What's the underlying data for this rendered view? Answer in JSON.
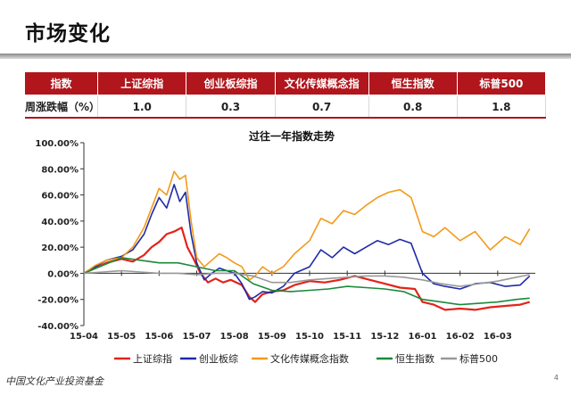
{
  "title": "市场变化",
  "table": {
    "headers": [
      "指数",
      "上证综指",
      "创业板综指",
      "文化传媒概念指",
      "恒生指数",
      "标普500"
    ],
    "row_label": "周涨跌幅（%）",
    "values": [
      "1.0",
      "0.3",
      "0.7",
      "0.8",
      "1.8"
    ]
  },
  "footer": {
    "logo_text": "中国文化产业投资基金",
    "page_number": "4"
  },
  "chart_data": {
    "type": "line",
    "title": "过往一年指数走势",
    "xlabel": "",
    "ylabel": "",
    "ylim": [
      -40,
      100
    ],
    "yticks": [
      "100.00%",
      "80.00%",
      "60.00%",
      "40.00%",
      "20.00%",
      "0.00%",
      "-20.00%",
      "-40.00%"
    ],
    "ytick_values": [
      100,
      80,
      60,
      40,
      20,
      0,
      -20,
      -40
    ],
    "x_ticks": [
      "15-04",
      "15-05",
      "15-06",
      "15-07",
      "15-08",
      "15-09",
      "15-10",
      "15-11",
      "15-12",
      "16-01",
      "16-02",
      "16-03"
    ],
    "x_range": [
      0,
      12
    ],
    "legend_position": "bottom",
    "series": [
      {
        "name": "上证综指",
        "color": "#e2231a",
        "x": [
          0,
          0.3,
          0.6,
          1.0,
          1.3,
          1.6,
          1.8,
          2.0,
          2.2,
          2.4,
          2.6,
          2.75,
          2.9,
          3.1,
          3.3,
          3.5,
          3.7,
          3.9,
          4.2,
          4.4,
          4.55,
          4.75,
          5.0,
          5.3,
          5.6,
          6.0,
          6.4,
          6.8,
          7.2,
          7.6,
          8.0,
          8.4,
          8.8,
          9.0,
          9.3,
          9.6,
          10.0,
          10.4,
          10.8,
          11.2,
          11.6,
          11.85
        ],
        "y": [
          0,
          4,
          8,
          11,
          9,
          14,
          20,
          24,
          30,
          32,
          35,
          20,
          12,
          0,
          -7,
          -4,
          -7,
          -5,
          -9,
          -18,
          -22,
          -16,
          -14,
          -13,
          -9,
          -6,
          -7,
          -5,
          -2,
          -5,
          -8,
          -11,
          -12,
          -22,
          -24,
          -28,
          -27,
          -28,
          -26,
          -25,
          -24,
          -22
        ]
      },
      {
        "name": "创业板综",
        "color": "#1f2aa8",
        "x": [
          0,
          0.3,
          0.6,
          1.0,
          1.3,
          1.6,
          1.8,
          2.0,
          2.2,
          2.4,
          2.55,
          2.7,
          2.85,
          3.0,
          3.2,
          3.4,
          3.6,
          3.8,
          4.0,
          4.2,
          4.4,
          4.55,
          4.75,
          5.0,
          5.3,
          5.6,
          6.0,
          6.3,
          6.6,
          6.9,
          7.2,
          7.5,
          7.8,
          8.1,
          8.4,
          8.7,
          9.0,
          9.3,
          9.6,
          10.0,
          10.4,
          10.8,
          11.2,
          11.6,
          11.85
        ],
        "y": [
          0,
          5,
          10,
          13,
          18,
          30,
          45,
          58,
          50,
          68,
          55,
          62,
          30,
          8,
          -5,
          0,
          4,
          2,
          0,
          -8,
          -20,
          -18,
          -14,
          -15,
          -10,
          0,
          5,
          18,
          12,
          20,
          15,
          20,
          25,
          22,
          26,
          23,
          0,
          -8,
          -10,
          -12,
          -8,
          -7,
          -10,
          -9,
          -2
        ]
      },
      {
        "name": "文化传媒概念指数",
        "color": "#f39a1a",
        "x": [
          0,
          0.3,
          0.6,
          1.0,
          1.3,
          1.6,
          1.8,
          2.0,
          2.2,
          2.4,
          2.55,
          2.7,
          2.85,
          3.0,
          3.2,
          3.4,
          3.6,
          3.8,
          4.0,
          4.2,
          4.4,
          4.55,
          4.75,
          5.0,
          5.3,
          5.6,
          6.0,
          6.3,
          6.6,
          6.9,
          7.2,
          7.5,
          7.8,
          8.1,
          8.4,
          8.7,
          9.0,
          9.3,
          9.6,
          10.0,
          10.4,
          10.8,
          11.2,
          11.6,
          11.85
        ],
        "y": [
          0,
          6,
          10,
          12,
          20,
          35,
          50,
          65,
          60,
          78,
          72,
          75,
          40,
          12,
          5,
          10,
          15,
          12,
          8,
          5,
          -5,
          -2,
          5,
          0,
          5,
          15,
          25,
          42,
          38,
          48,
          45,
          52,
          58,
          62,
          64,
          58,
          32,
          28,
          35,
          25,
          32,
          18,
          28,
          22,
          34
        ]
      },
      {
        "name": "恒生指数",
        "color": "#1a8a3a",
        "x": [
          0,
          0.5,
          1.0,
          1.5,
          2.0,
          2.5,
          3.0,
          3.5,
          4.0,
          4.5,
          5.0,
          5.5,
          6.0,
          6.5,
          7.0,
          7.5,
          8.0,
          8.5,
          9.0,
          9.5,
          10.0,
          10.5,
          11.0,
          11.5,
          11.85
        ],
        "y": [
          0,
          6,
          12,
          10,
          8,
          8,
          5,
          2,
          2,
          -8,
          -13,
          -14,
          -13,
          -12,
          -10,
          -11,
          -12,
          -14,
          -20,
          -22,
          -24,
          -23,
          -22,
          -20,
          -19
        ]
      },
      {
        "name": "标普500",
        "color": "#999999",
        "x": [
          0,
          0.5,
          1.0,
          1.5,
          2.0,
          2.5,
          3.0,
          3.5,
          4.0,
          4.5,
          5.0,
          5.5,
          6.0,
          6.5,
          7.0,
          7.5,
          8.0,
          8.5,
          9.0,
          9.5,
          10.0,
          10.5,
          11.0,
          11.5,
          11.85
        ],
        "y": [
          0,
          1,
          2,
          1,
          0,
          0,
          -1,
          0,
          0,
          -2,
          -7,
          -7,
          -5,
          -4,
          -3,
          -2,
          -2,
          -3,
          -5,
          -8,
          -10,
          -8,
          -6,
          -3,
          -1
        ]
      }
    ]
  }
}
